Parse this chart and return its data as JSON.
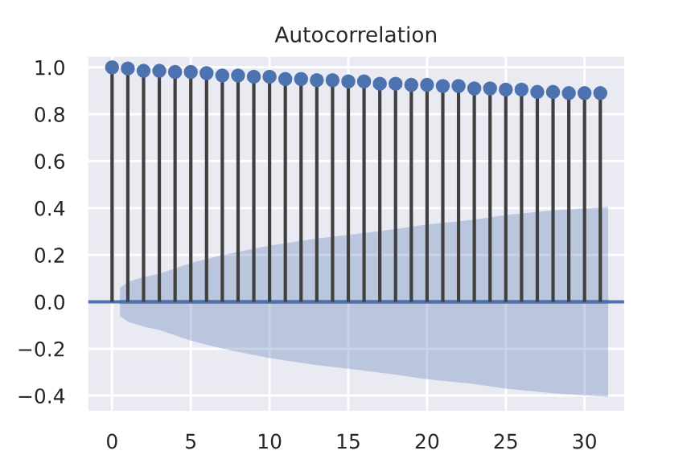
{
  "chart_data": {
    "type": "lollipop",
    "title": "Autocorrelation",
    "x": [
      0,
      1,
      2,
      3,
      4,
      5,
      6,
      7,
      8,
      9,
      10,
      11,
      12,
      13,
      14,
      15,
      16,
      17,
      18,
      19,
      20,
      21,
      22,
      23,
      24,
      25,
      26,
      27,
      28,
      29,
      30,
      31
    ],
    "series": [
      {
        "color": "#4c72b0",
        "marker": "circle",
        "values": [
          1.0,
          0.995,
          0.985,
          0.985,
          0.98,
          0.98,
          0.975,
          0.965,
          0.965,
          0.96,
          0.96,
          0.95,
          0.95,
          0.945,
          0.945,
          0.94,
          0.94,
          0.93,
          0.93,
          0.925,
          0.925,
          0.92,
          0.92,
          0.91,
          0.91,
          0.905,
          0.905,
          0.895,
          0.895,
          0.89,
          0.89,
          0.89
        ]
      },
      {
        "type": "line",
        "color": "#4c72b0",
        "marker": "none",
        "x": [
          0.5,
          1,
          2,
          3,
          5,
          7,
          10,
          13,
          15,
          18,
          20,
          23,
          25,
          28,
          31.5
        ],
        "values": [
          0,
          0,
          0,
          0,
          0,
          0,
          0,
          0,
          0,
          0,
          0,
          0,
          0,
          0,
          0
        ],
        "lower": [
          -0.06,
          -0.085,
          -0.105,
          -0.12,
          -0.165,
          -0.2,
          -0.24,
          -0.27,
          -0.285,
          -0.31,
          -0.33,
          -0.35,
          -0.37,
          -0.39,
          -0.405
        ],
        "upper": [
          0.06,
          0.085,
          0.105,
          0.12,
          0.165,
          0.2,
          0.24,
          0.27,
          0.285,
          0.31,
          0.33,
          0.35,
          0.37,
          0.39,
          0.405
        ]
      }
    ],
    "ref_lines": [
      {
        "axis": "y",
        "value": 0,
        "color": "#4c72b0"
      }
    ],
    "grid": true,
    "xlim": [
      -1.6,
      32.6
    ],
    "xticks": [
      0,
      5,
      10,
      15,
      20,
      25,
      30
    ],
    "ylim": [
      -0.47,
      1.05
    ],
    "yticks": [
      {
        "value": -0.4,
        "label": "−0.4"
      },
      {
        "value": -0.2,
        "label": "−0.2"
      },
      {
        "value": 0,
        "label": "0.0"
      },
      {
        "value": 0.2,
        "label": "0.2"
      },
      {
        "value": 0.4,
        "label": "0.4"
      },
      {
        "value": 0.6,
        "label": "0.6"
      },
      {
        "value": 0.8,
        "label": "0.8"
      },
      {
        "value": 1.0,
        "label": "1.0"
      }
    ]
  }
}
